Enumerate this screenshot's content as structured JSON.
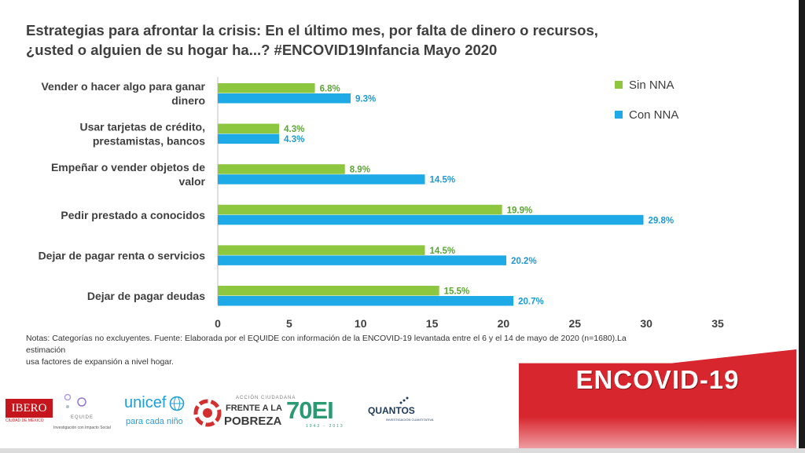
{
  "title_line1": "Estrategias para afrontar la crisis: En el último mes, por falta de dinero o recursos,",
  "title_line2": "¿usted o alguien de su hogar ha...? #ENCOVID19Infancia Mayo 2020",
  "notes_line1": "Notas: Categorías no excluyentes. Fuente: Elaborada por el EQUIDE con información de la ENCOVID-19 levantada entre el 6 y el 14 de mayo de 2020 (n=1680).La estimación",
  "notes_line2": "usa factores de expansión a nivel hogar.",
  "banner_text": "ENCOVID-19",
  "colors": {
    "sin_nna": "#8dc63f",
    "con_nna": "#1eaae7",
    "label_sin": "#5aa632",
    "label_con": "#1a9ad6"
  },
  "logos": {
    "ibero": "IBERO",
    "ibero_sub": "CIUDAD DE MÉXICO",
    "equide": "EQUIDE",
    "equide_sub": "Investigación con Impacto Social",
    "unicef": "unicef",
    "unicef_sub": "para cada niño",
    "fap_small": "ACCIÓN CIUDADANA",
    "fap_line1": "FRENTE A LA",
    "fap_line2": "POBREZA",
    "seventy": "70EI",
    "seventy_sub": "1943 - 2013",
    "quantos": "QUANTOS",
    "quantos_sub": "INVESTIGACIÓN CUANTITATIVA"
  },
  "chart_data": {
    "type": "bar",
    "orientation": "horizontal",
    "categories": [
      [
        "Vender o hacer algo para ganar",
        "dinero"
      ],
      [
        "Usar tarjetas de crédito,",
        "prestamistas, bancos"
      ],
      [
        "Empeñar o vender objetos de",
        "valor"
      ],
      [
        "Pedir prestado a conocidos"
      ],
      [
        "Dejar de pagar renta o servicios"
      ],
      [
        "Dejar de pagar deudas"
      ]
    ],
    "series": [
      {
        "name": "Sin NNA",
        "color": "#8dc63f",
        "values": [
          6.8,
          4.3,
          8.9,
          19.9,
          14.5,
          15.5
        ]
      },
      {
        "name": "Con NNA",
        "color": "#1eaae7",
        "values": [
          9.3,
          4.3,
          14.5,
          29.8,
          20.2,
          20.7
        ]
      }
    ],
    "value_suffix": "%",
    "xlim": [
      0,
      35
    ],
    "xticks": [
      0,
      5,
      10,
      15,
      20,
      25,
      30,
      35
    ],
    "grid": false,
    "legend_position": "top-right"
  }
}
